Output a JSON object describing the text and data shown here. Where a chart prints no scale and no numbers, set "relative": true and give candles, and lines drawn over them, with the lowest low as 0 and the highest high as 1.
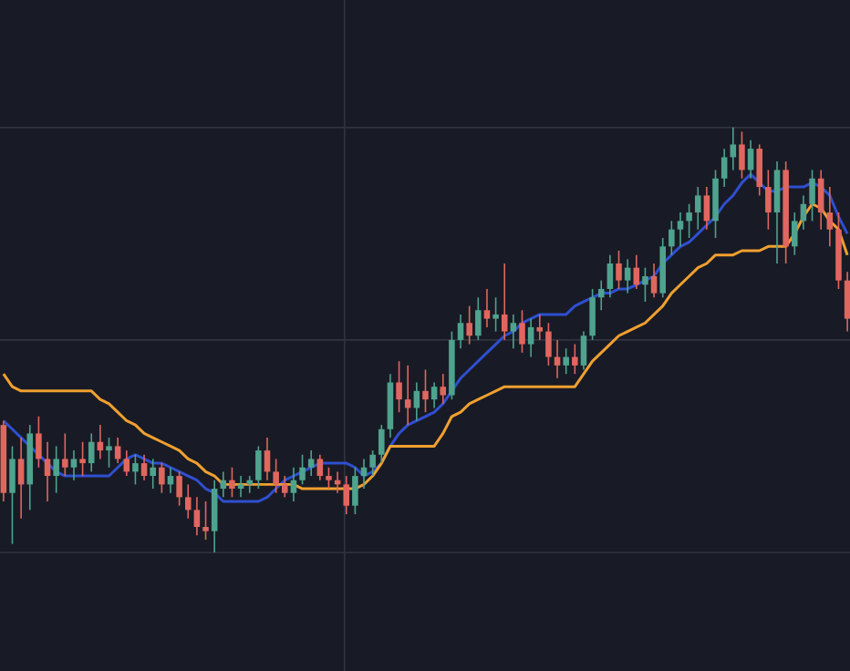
{
  "chart_data": {
    "type": "candlestick",
    "relative": true,
    "grid": true,
    "colors": [
      "#e0675f",
      "#4fa38e",
      "#e0675f",
      "#4fa38e",
      "#e0675f",
      "#e0675f",
      "#4fa38e",
      "#e0675f",
      "#4fa38e",
      "#e0675f",
      "#4fa38e",
      "#e0675f",
      "#4fa38e",
      "#e0675f",
      "#e0675f",
      "#4fa38e",
      "#e0675f",
      "#4fa38e",
      "#e0675f",
      "#4fa38e",
      "#e0675f",
      "#e0675f",
      "#e0675f",
      "#e0675f",
      "#4fa38e",
      "#4fa38e",
      "#e0675f",
      "#4fa38e",
      "#4fa38e",
      "#4fa38e",
      "#e0675f",
      "#e0675f",
      "#e0675f",
      "#4fa38e",
      "#4fa38e",
      "#4fa38e",
      "#e0675f",
      "#e0675f",
      "#e0675f",
      "#e0675f",
      "#4fa38e",
      "#4fa38e",
      "#4fa38e",
      "#4fa38e",
      "#4fa38e",
      "#e0675f",
      "#e0675f",
      "#4fa38e",
      "#e0675f",
      "#4fa38e",
      "#e0675f",
      "#4fa38e",
      "#4fa38e",
      "#e0675f",
      "#4fa38e",
      "#e0675f",
      "#4fa38e",
      "#e0675f",
      "#4fa38e",
      "#e0675f",
      "#4fa38e",
      "#e0675f",
      "#e0675f",
      "#e0675f",
      "#4fa38e",
      "#e0675f",
      "#4fa38e",
      "#4fa38e",
      "#4fa38e",
      "#4fa38e",
      "#e0675f",
      "#4fa38e",
      "#e0675f",
      "#4fa38e",
      "#e0675f",
      "#4fa38e",
      "#4fa38e",
      "#4fa38e",
      "#4fa38e",
      "#4fa38e",
      "#e0675f",
      "#4fa38e",
      "#4fa38e",
      "#4fa38e",
      "#e0675f",
      "#4fa38e",
      "#e0675f",
      "#e0675f",
      "#4fa38e",
      "#e0675f",
      "#4fa38e",
      "#4fa38e",
      "#4fa38e",
      "#e0675f",
      "#e0675f",
      "#e0675f",
      "#e0675f"
    ],
    "categories": [
      null,
      null,
      null,
      null,
      null,
      null,
      null,
      null,
      null,
      null,
      null,
      null,
      null,
      null,
      null,
      null,
      null,
      null,
      null,
      null,
      null,
      null,
      null,
      null,
      null,
      null,
      null,
      null,
      null,
      null,
      null,
      null,
      null,
      null,
      null,
      null,
      null,
      null,
      null,
      null,
      null,
      null,
      null,
      null,
      null,
      null,
      null,
      null,
      null,
      null,
      null,
      null,
      null,
      null,
      null,
      null,
      null,
      null,
      null,
      null,
      null,
      null,
      null,
      null,
      null,
      null,
      null,
      null,
      null,
      null,
      null,
      null,
      null,
      null,
      null,
      null,
      null,
      null,
      null,
      null,
      null,
      null,
      null,
      null,
      null,
      null,
      null,
      null,
      null,
      null,
      null,
      null,
      null,
      null,
      null,
      null,
      null
    ],
    "ohlc": [
      [
        0.3,
        0.31,
        0.12,
        0.14
      ],
      [
        0.14,
        0.25,
        0.02,
        0.22
      ],
      [
        0.22,
        0.27,
        0.08,
        0.16
      ],
      [
        0.16,
        0.3,
        0.1,
        0.28
      ],
      [
        0.28,
        0.32,
        0.2,
        0.22
      ],
      [
        0.22,
        0.26,
        0.12,
        0.18
      ],
      [
        0.18,
        0.25,
        0.14,
        0.22
      ],
      [
        0.22,
        0.28,
        0.18,
        0.2
      ],
      [
        0.2,
        0.24,
        0.17,
        0.22
      ],
      [
        0.22,
        0.26,
        0.18,
        0.21
      ],
      [
        0.21,
        0.28,
        0.19,
        0.26
      ],
      [
        0.26,
        0.3,
        0.22,
        0.24
      ],
      [
        0.24,
        0.27,
        0.2,
        0.25
      ],
      [
        0.25,
        0.27,
        0.21,
        0.22
      ],
      [
        0.22,
        0.24,
        0.18,
        0.19
      ],
      [
        0.19,
        0.23,
        0.16,
        0.21
      ],
      [
        0.21,
        0.23,
        0.17,
        0.18
      ],
      [
        0.18,
        0.22,
        0.15,
        0.2
      ],
      [
        0.2,
        0.21,
        0.14,
        0.16
      ],
      [
        0.16,
        0.2,
        0.14,
        0.18
      ],
      [
        0.18,
        0.19,
        0.11,
        0.13
      ],
      [
        0.13,
        0.16,
        0.08,
        0.1
      ],
      [
        0.1,
        0.13,
        0.04,
        0.06
      ],
      [
        0.06,
        0.12,
        0.03,
        0.05
      ],
      [
        0.05,
        0.17,
        0.0,
        0.15
      ],
      [
        0.15,
        0.19,
        0.13,
        0.17
      ],
      [
        0.17,
        0.2,
        0.13,
        0.15
      ],
      [
        0.15,
        0.18,
        0.13,
        0.16
      ],
      [
        0.16,
        0.18,
        0.14,
        0.17
      ],
      [
        0.17,
        0.25,
        0.15,
        0.24
      ],
      [
        0.24,
        0.27,
        0.17,
        0.19
      ],
      [
        0.19,
        0.22,
        0.14,
        0.16
      ],
      [
        0.16,
        0.18,
        0.13,
        0.14
      ],
      [
        0.14,
        0.2,
        0.12,
        0.17
      ],
      [
        0.17,
        0.23,
        0.16,
        0.2
      ],
      [
        0.2,
        0.24,
        0.18,
        0.22
      ],
      [
        0.22,
        0.23,
        0.17,
        0.18
      ],
      [
        0.18,
        0.2,
        0.15,
        0.17
      ],
      [
        0.17,
        0.19,
        0.14,
        0.16
      ],
      [
        0.16,
        0.18,
        0.09,
        0.11
      ],
      [
        0.11,
        0.2,
        0.09,
        0.18
      ],
      [
        0.18,
        0.22,
        0.15,
        0.2
      ],
      [
        0.2,
        0.24,
        0.18,
        0.23
      ],
      [
        0.23,
        0.3,
        0.21,
        0.29
      ],
      [
        0.29,
        0.42,
        0.27,
        0.4
      ],
      [
        0.4,
        0.45,
        0.33,
        0.36
      ],
      [
        0.36,
        0.44,
        0.3,
        0.34
      ],
      [
        0.34,
        0.4,
        0.31,
        0.38
      ],
      [
        0.38,
        0.43,
        0.33,
        0.36
      ],
      [
        0.36,
        0.4,
        0.34,
        0.39
      ],
      [
        0.39,
        0.42,
        0.35,
        0.37
      ],
      [
        0.37,
        0.52,
        0.36,
        0.5
      ],
      [
        0.5,
        0.56,
        0.48,
        0.54
      ],
      [
        0.54,
        0.58,
        0.49,
        0.51
      ],
      [
        0.51,
        0.6,
        0.5,
        0.57
      ],
      [
        0.57,
        0.62,
        0.53,
        0.55
      ],
      [
        0.55,
        0.6,
        0.52,
        0.56
      ],
      [
        0.56,
        0.68,
        0.5,
        0.52
      ],
      [
        0.52,
        0.56,
        0.48,
        0.54
      ],
      [
        0.54,
        0.57,
        0.47,
        0.49
      ],
      [
        0.49,
        0.55,
        0.46,
        0.53
      ],
      [
        0.53,
        0.56,
        0.5,
        0.52
      ],
      [
        0.52,
        0.54,
        0.44,
        0.46
      ],
      [
        0.46,
        0.5,
        0.41,
        0.44
      ],
      [
        0.44,
        0.48,
        0.42,
        0.46
      ],
      [
        0.46,
        0.49,
        0.42,
        0.44
      ],
      [
        0.44,
        0.52,
        0.43,
        0.51
      ],
      [
        0.51,
        0.62,
        0.5,
        0.6
      ],
      [
        0.6,
        0.64,
        0.57,
        0.62
      ],
      [
        0.62,
        0.7,
        0.6,
        0.68
      ],
      [
        0.68,
        0.71,
        0.62,
        0.64
      ],
      [
        0.64,
        0.69,
        0.61,
        0.67
      ],
      [
        0.67,
        0.7,
        0.62,
        0.63
      ],
      [
        0.63,
        0.67,
        0.59,
        0.65
      ],
      [
        0.65,
        0.68,
        0.6,
        0.61
      ],
      [
        0.61,
        0.74,
        0.6,
        0.72
      ],
      [
        0.72,
        0.78,
        0.7,
        0.76
      ],
      [
        0.76,
        0.8,
        0.72,
        0.78
      ],
      [
        0.78,
        0.82,
        0.74,
        0.8
      ],
      [
        0.8,
        0.86,
        0.76,
        0.84
      ],
      [
        0.84,
        0.86,
        0.76,
        0.78
      ],
      [
        0.78,
        0.9,
        0.74,
        0.88
      ],
      [
        0.88,
        0.95,
        0.86,
        0.93
      ],
      [
        0.93,
        1.0,
        0.9,
        0.96
      ],
      [
        0.96,
        0.99,
        0.88,
        0.9
      ],
      [
        0.9,
        0.97,
        0.88,
        0.95
      ],
      [
        0.95,
        0.96,
        0.84,
        0.86
      ],
      [
        0.86,
        0.9,
        0.76,
        0.8
      ],
      [
        0.8,
        0.92,
        0.68,
        0.9
      ],
      [
        0.9,
        0.92,
        0.68,
        0.72
      ],
      [
        0.72,
        0.8,
        0.7,
        0.78
      ],
      [
        0.78,
        0.84,
        0.76,
        0.82
      ],
      [
        0.82,
        0.9,
        0.78,
        0.88
      ],
      [
        0.88,
        0.9,
        0.76,
        0.8
      ],
      [
        0.8,
        0.86,
        0.72,
        0.76
      ],
      [
        0.76,
        0.8,
        0.62,
        0.64
      ],
      [
        0.64,
        0.66,
        0.52,
        0.55
      ]
    ],
    "series": [
      {
        "type": "line",
        "color": "#2f4fd0",
        "values": [
          0.31,
          0.29,
          0.27,
          0.25,
          0.23,
          0.21,
          0.19,
          0.18,
          0.18,
          0.18,
          0.18,
          0.18,
          0.18,
          0.2,
          0.22,
          0.23,
          0.22,
          0.21,
          0.21,
          0.2,
          0.19,
          0.18,
          0.17,
          0.15,
          0.14,
          0.12,
          0.12,
          0.12,
          0.12,
          0.12,
          0.13,
          0.15,
          0.17,
          0.18,
          0.19,
          0.2,
          0.21,
          0.21,
          0.21,
          0.21,
          0.2,
          0.18,
          0.19,
          0.21,
          0.25,
          0.28,
          0.3,
          0.31,
          0.32,
          0.33,
          0.35,
          0.38,
          0.41,
          0.43,
          0.45,
          0.47,
          0.49,
          0.51,
          0.52,
          0.54,
          0.55,
          0.56,
          0.56,
          0.56,
          0.56,
          0.58,
          0.59,
          0.6,
          0.61,
          0.61,
          0.62,
          0.62,
          0.63,
          0.64,
          0.65,
          0.68,
          0.7,
          0.72,
          0.73,
          0.75,
          0.77,
          0.79,
          0.82,
          0.84,
          0.87,
          0.89,
          0.87,
          0.85,
          0.85,
          0.86,
          0.86,
          0.86,
          0.87,
          0.86,
          0.84,
          0.79,
          0.75
        ]
      },
      {
        "type": "line",
        "color": "#f0a030",
        "values": [
          0.42,
          0.39,
          0.38,
          0.38,
          0.38,
          0.38,
          0.38,
          0.38,
          0.38,
          0.38,
          0.38,
          0.36,
          0.35,
          0.33,
          0.31,
          0.3,
          0.28,
          0.27,
          0.26,
          0.25,
          0.24,
          0.22,
          0.21,
          0.19,
          0.18,
          0.16,
          0.16,
          0.16,
          0.16,
          0.16,
          0.16,
          0.16,
          0.16,
          0.16,
          0.15,
          0.15,
          0.15,
          0.15,
          0.15,
          0.15,
          0.15,
          0.16,
          0.18,
          0.21,
          0.25,
          0.25,
          0.25,
          0.25,
          0.25,
          0.25,
          0.28,
          0.32,
          0.33,
          0.35,
          0.36,
          0.37,
          0.38,
          0.39,
          0.39,
          0.39,
          0.39,
          0.39,
          0.39,
          0.39,
          0.39,
          0.39,
          0.42,
          0.45,
          0.47,
          0.49,
          0.51,
          0.52,
          0.53,
          0.54,
          0.56,
          0.58,
          0.61,
          0.63,
          0.65,
          0.67,
          0.68,
          0.7,
          0.7,
          0.7,
          0.71,
          0.71,
          0.71,
          0.72,
          0.72,
          0.72,
          0.75,
          0.79,
          0.82,
          0.81,
          0.78,
          0.76,
          0.7
        ]
      }
    ]
  }
}
